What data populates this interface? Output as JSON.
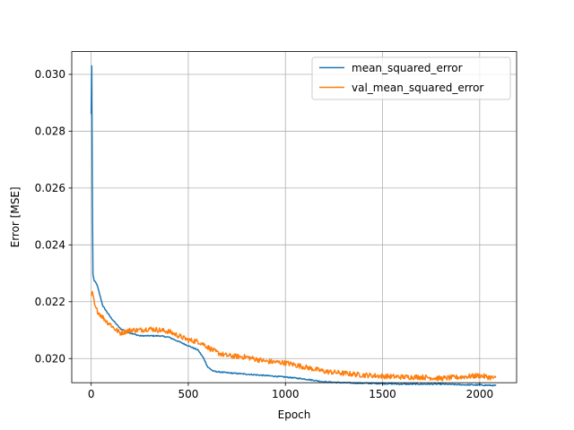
{
  "chart_data": {
    "type": "line",
    "title": "",
    "xlabel": "Epoch",
    "ylabel": "Error [MSE]",
    "xlim": [
      -100,
      2190
    ],
    "ylim": [
      0.01915,
      0.0308
    ],
    "xticks": [
      0,
      500,
      1000,
      1500,
      2000
    ],
    "yticks": [
      0.02,
      0.022,
      0.024,
      0.026,
      0.028,
      0.03
    ],
    "xtick_labels": [
      "0",
      "500",
      "1000",
      "1500",
      "2000"
    ],
    "ytick_labels": [
      "0.020",
      "0.022",
      "0.024",
      "0.026",
      "0.028",
      "0.030"
    ],
    "grid": true,
    "legend_position": "top-right",
    "series": [
      {
        "name": "mean_squared_error",
        "color": "#1f77b4",
        "noise": 2e-05,
        "x": [
          0,
          3,
          8,
          15,
          30,
          60,
          100,
          150,
          200,
          250,
          300,
          350,
          400,
          450,
          500,
          550,
          580,
          600,
          630,
          700,
          800,
          900,
          1000,
          1100,
          1200,
          1300,
          1400,
          1500,
          1600,
          1700,
          1800,
          1900,
          2000,
          2085
        ],
        "y": [
          0.0286,
          0.0303,
          0.023,
          0.02275,
          0.0226,
          0.02185,
          0.02145,
          0.02105,
          0.0209,
          0.0208,
          0.0208,
          0.0208,
          0.02075,
          0.0206,
          0.02045,
          0.0203,
          0.02,
          0.0197,
          0.01955,
          0.0195,
          0.01945,
          0.0194,
          0.01935,
          0.01928,
          0.01918,
          0.01915,
          0.01913,
          0.01912,
          0.0191,
          0.0191,
          0.0191,
          0.01908,
          0.01907,
          0.01905
        ]
      },
      {
        "name": "val_mean_squared_error",
        "color": "#ff7f0e",
        "noise": 9e-05,
        "x": [
          0,
          5,
          20,
          40,
          60,
          80,
          100,
          120,
          150,
          200,
          250,
          300,
          350,
          400,
          450,
          500,
          550,
          580,
          600,
          650,
          700,
          800,
          900,
          1000,
          1100,
          1200,
          1300,
          1400,
          1500,
          1600,
          1700,
          1800,
          1900,
          2000,
          2085
        ],
        "y": [
          0.0222,
          0.0224,
          0.0218,
          0.0216,
          0.02145,
          0.0213,
          0.0212,
          0.02105,
          0.0209,
          0.021,
          0.021,
          0.02105,
          0.021,
          0.02095,
          0.0208,
          0.02065,
          0.0206,
          0.0205,
          0.0204,
          0.0202,
          0.0201,
          0.02005,
          0.0199,
          0.01985,
          0.0197,
          0.01955,
          0.01948,
          0.01942,
          0.01938,
          0.01935,
          0.01935,
          0.0193,
          0.01935,
          0.0194,
          0.0193
        ]
      }
    ]
  }
}
